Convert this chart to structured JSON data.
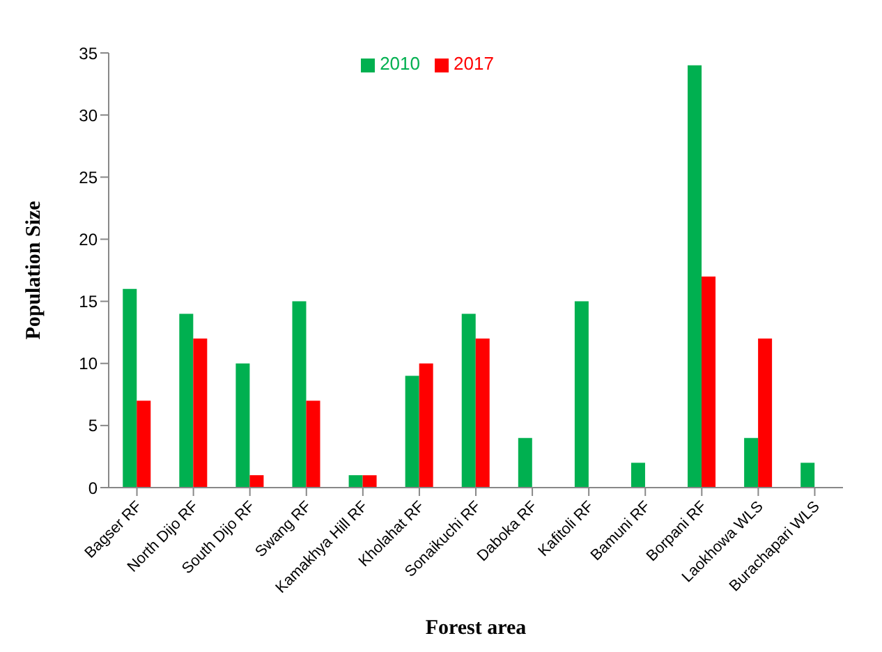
{
  "chart_data": {
    "type": "bar",
    "xlabel": "Forest area",
    "ylabel": "Population Size",
    "categories": [
      "Bagser RF",
      "North Dijo RF",
      "South Dijo RF",
      "Swang RF",
      "Kamakhya Hill RF",
      "Kholahat RF",
      "Sonaikuchi RF",
      "Daboka RF",
      "Kafitoli RF",
      "Bamuni RF",
      "Borpani RF",
      "Laokhowa WLS",
      "Burachapari WLS"
    ],
    "series": [
      {
        "name": "2010",
        "color": "#00b050",
        "values": [
          16,
          14,
          10,
          15,
          1,
          9,
          14,
          4,
          15,
          2,
          34,
          4,
          2
        ]
      },
      {
        "name": "2017",
        "color": "#ff0000",
        "values": [
          7,
          12,
          1,
          7,
          1,
          10,
          12,
          0,
          0,
          0,
          17,
          12,
          0
        ]
      }
    ],
    "ylim": [
      0,
      35
    ],
    "yticks": [
      0,
      5,
      10,
      15,
      20,
      25,
      30,
      35
    ],
    "grid": false,
    "legend": "top"
  }
}
